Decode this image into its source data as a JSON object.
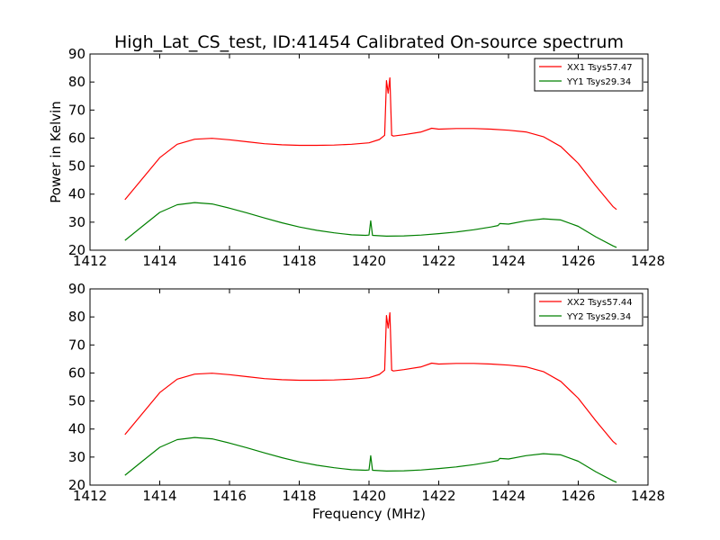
{
  "figure": {
    "title": "High_Lat_CS_test, ID:41454 Calibrated On-source spectrum",
    "ylabel": "Power in Kelvin",
    "xlabel": "Frequency (MHz)"
  },
  "chart_data": [
    {
      "type": "line",
      "title": "High_Lat_CS_test, ID:41454 Calibrated On-source spectrum",
      "xlabel": "",
      "ylabel": "Power in Kelvin",
      "xlim": [
        1412,
        1428
      ],
      "ylim": [
        20,
        90
      ],
      "xticks": [
        1412,
        1414,
        1416,
        1418,
        1420,
        1422,
        1424,
        1426,
        1428
      ],
      "yticks": [
        20,
        30,
        40,
        50,
        60,
        70,
        80,
        90
      ],
      "grid": false,
      "legend_position": "top-right",
      "series": [
        {
          "name": "XX1 Tsys57.47",
          "color": "#ff0000",
          "x": [
            1413.0,
            1413.5,
            1414.0,
            1414.5,
            1415.0,
            1415.5,
            1416.0,
            1416.5,
            1417.0,
            1417.5,
            1418.0,
            1418.5,
            1419.0,
            1419.5,
            1420.0,
            1420.3,
            1420.45,
            1420.5,
            1420.55,
            1420.6,
            1420.65,
            1420.7,
            1421.0,
            1421.5,
            1421.8,
            1422.0,
            1422.5,
            1423.0,
            1423.5,
            1424.0,
            1424.5,
            1425.0,
            1425.5,
            1426.0,
            1426.5,
            1427.0,
            1427.1
          ],
          "y": [
            38.0,
            45.5,
            53.0,
            57.8,
            59.6,
            59.9,
            59.4,
            58.7,
            58.0,
            57.6,
            57.4,
            57.4,
            57.5,
            57.8,
            58.3,
            59.5,
            61.0,
            80.5,
            76.0,
            81.5,
            61.0,
            60.7,
            61.2,
            62.2,
            63.5,
            63.2,
            63.4,
            63.4,
            63.2,
            62.8,
            62.2,
            60.5,
            57.0,
            51.0,
            43.0,
            35.5,
            34.5
          ]
        },
        {
          "name": "YY1 Tsys29.34",
          "color": "#008000",
          "x": [
            1413.0,
            1413.5,
            1414.0,
            1414.5,
            1415.0,
            1415.5,
            1416.0,
            1416.5,
            1417.0,
            1417.5,
            1418.0,
            1418.5,
            1419.0,
            1419.5,
            1419.9,
            1420.0,
            1420.05,
            1420.1,
            1420.5,
            1421.0,
            1421.5,
            1422.0,
            1422.5,
            1423.0,
            1423.5,
            1423.7,
            1423.75,
            1424.0,
            1424.5,
            1425.0,
            1425.5,
            1426.0,
            1426.5,
            1427.0,
            1427.1
          ],
          "y": [
            23.5,
            28.5,
            33.5,
            36.2,
            37.0,
            36.5,
            35.0,
            33.3,
            31.5,
            29.8,
            28.3,
            27.1,
            26.2,
            25.5,
            25.3,
            25.4,
            30.5,
            25.3,
            25.0,
            25.1,
            25.4,
            25.9,
            26.5,
            27.3,
            28.3,
            28.8,
            29.5,
            29.3,
            30.5,
            31.2,
            30.8,
            28.5,
            24.8,
            21.5,
            21.0
          ]
        }
      ]
    },
    {
      "type": "line",
      "title": "",
      "xlabel": "Frequency (MHz)",
      "ylabel": "",
      "xlim": [
        1412,
        1428
      ],
      "ylim": [
        20,
        90
      ],
      "xticks": [
        1412,
        1414,
        1416,
        1418,
        1420,
        1422,
        1424,
        1426,
        1428
      ],
      "yticks": [
        20,
        30,
        40,
        50,
        60,
        70,
        80,
        90
      ],
      "grid": false,
      "legend_position": "top-right",
      "series": [
        {
          "name": "XX2 Tsys57.44",
          "color": "#ff0000",
          "x": [
            1413.0,
            1413.5,
            1414.0,
            1414.5,
            1415.0,
            1415.5,
            1416.0,
            1416.5,
            1417.0,
            1417.5,
            1418.0,
            1418.5,
            1419.0,
            1419.5,
            1420.0,
            1420.3,
            1420.45,
            1420.5,
            1420.55,
            1420.6,
            1420.65,
            1420.7,
            1421.0,
            1421.5,
            1421.8,
            1422.0,
            1422.5,
            1423.0,
            1423.5,
            1424.0,
            1424.5,
            1425.0,
            1425.5,
            1426.0,
            1426.5,
            1427.0,
            1427.1
          ],
          "y": [
            38.0,
            45.5,
            53.0,
            57.8,
            59.6,
            59.9,
            59.4,
            58.7,
            58.0,
            57.6,
            57.4,
            57.4,
            57.5,
            57.8,
            58.3,
            59.5,
            61.0,
            80.5,
            76.0,
            81.5,
            61.0,
            60.7,
            61.2,
            62.2,
            63.5,
            63.2,
            63.4,
            63.4,
            63.2,
            62.8,
            62.2,
            60.5,
            57.0,
            51.0,
            43.0,
            35.5,
            34.5
          ]
        },
        {
          "name": "YY2 Tsys29.34",
          "color": "#008000",
          "x": [
            1413.0,
            1413.5,
            1414.0,
            1414.5,
            1415.0,
            1415.5,
            1416.0,
            1416.5,
            1417.0,
            1417.5,
            1418.0,
            1418.5,
            1419.0,
            1419.5,
            1419.9,
            1420.0,
            1420.05,
            1420.1,
            1420.5,
            1421.0,
            1421.5,
            1422.0,
            1422.5,
            1423.0,
            1423.5,
            1423.7,
            1423.75,
            1424.0,
            1424.5,
            1425.0,
            1425.5,
            1426.0,
            1426.5,
            1427.0,
            1427.1
          ],
          "y": [
            23.5,
            28.5,
            33.5,
            36.2,
            37.0,
            36.5,
            35.0,
            33.3,
            31.5,
            29.8,
            28.3,
            27.1,
            26.2,
            25.5,
            25.3,
            25.4,
            30.5,
            25.3,
            25.0,
            25.1,
            25.4,
            25.9,
            26.5,
            27.3,
            28.3,
            28.8,
            29.5,
            29.3,
            30.5,
            31.2,
            30.8,
            28.5,
            24.8,
            21.5,
            21.0
          ]
        }
      ]
    }
  ]
}
